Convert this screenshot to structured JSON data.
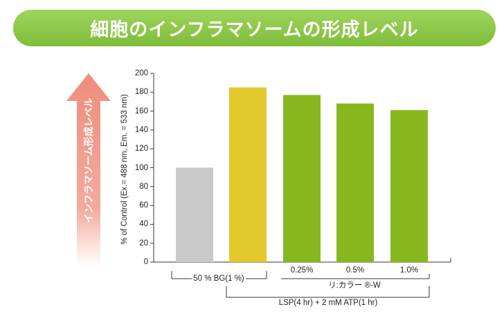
{
  "header": {
    "title": "細胞のインフラマソームの形成レベル"
  },
  "arrow": {
    "label": "インフラマソーム形成レベル"
  },
  "chart_data": {
    "type": "bar",
    "ylabel": "% of Control (Ex.= 488 nm, Em. = 533 nm)",
    "xlabel": "",
    "ylim": [
      0,
      200
    ],
    "yticks": [
      0,
      20,
      40,
      60,
      80,
      100,
      120,
      140,
      160,
      180,
      200
    ],
    "categories": [
      "50 % BG(1 %)",
      "",
      "0.25%",
      "0.5%",
      "1.0%"
    ],
    "values": [
      100,
      185,
      177,
      168,
      161
    ],
    "bar_colors": [
      "#c8c8c8",
      "#e2c92c",
      "#86b81e",
      "#86b81e",
      "#86b81e"
    ],
    "groups": [
      "リ:カラー ®-W",
      "LSP(4 hr) + 2 mM ATP(1 hr)"
    ]
  }
}
